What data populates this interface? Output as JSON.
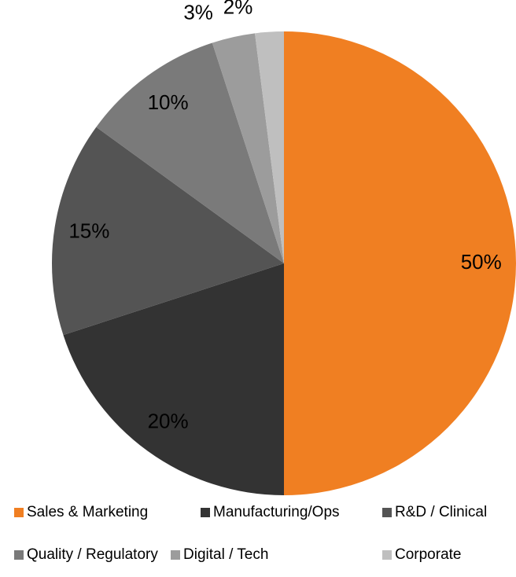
{
  "chart_data": {
    "type": "pie",
    "categories": [
      "Sales & Marketing",
      "Manufacturing/Ops",
      "R&D / Clinical",
      "Quality / Regulatory",
      "Digital / Tech",
      "Corporate"
    ],
    "values": [
      50,
      20,
      15,
      10,
      3,
      2
    ],
    "value_labels": [
      "50%",
      "20%",
      "15%",
      "10%",
      "3%",
      "2%"
    ],
    "colors": [
      "#f07f22",
      "#333333",
      "#545454",
      "#7a7a7a",
      "#9c9c9c",
      "#bfbfbf"
    ],
    "legend": "bottom"
  }
}
